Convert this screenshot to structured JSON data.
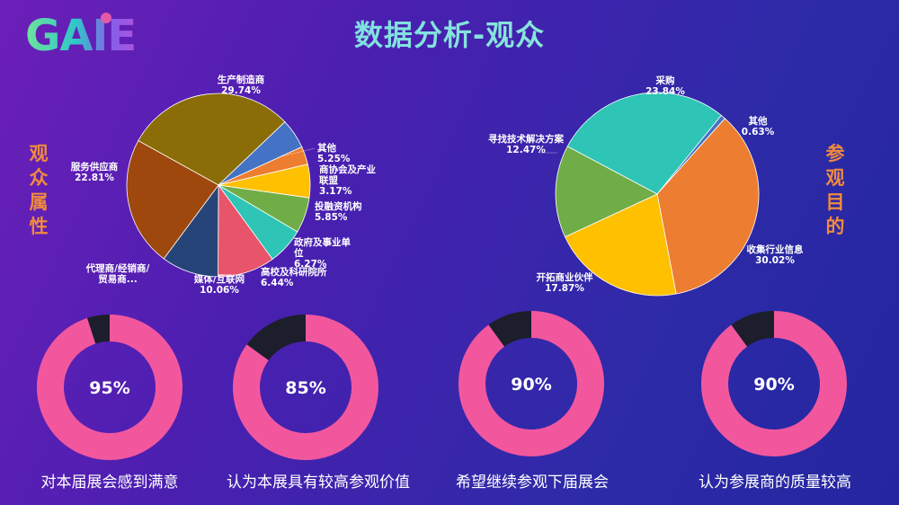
{
  "logo": {
    "text": "GAIE"
  },
  "title": "数据分析-观众",
  "left_side_label": "观众属性",
  "right_side_label": "参观目的",
  "colors": {
    "donut_fill": "#f2579e",
    "donut_rest": "#1c1e2b",
    "accent": "#f08a3e"
  },
  "chart_data": [
    {
      "type": "pie",
      "title": "",
      "slices": [
        {
          "label": "生产制造商",
          "value": 29.74,
          "pct_text": "29.74%",
          "color": "#8a6d06"
        },
        {
          "label": "其他",
          "value": 5.25,
          "pct_text": "5.25%",
          "color": "#4472c4"
        },
        {
          "label": "商协会及产业联盟",
          "value": 3.17,
          "pct_text": "3.17%",
          "color": "#ed7d31"
        },
        {
          "label": "投融资机构",
          "value": 5.85,
          "pct_text": "5.85%",
          "color": "#ffc000"
        },
        {
          "label": "政府及事业单位",
          "value": 6.27,
          "pct_text": "6.27%",
          "color": "#70ad47"
        },
        {
          "label": "高校及科研院所",
          "value": 6.44,
          "pct_text": "6.44%",
          "color": "#2ec4b6"
        },
        {
          "label": "媒体/互联网",
          "value": 10.06,
          "pct_text": "10.06%",
          "color": "#e8546a"
        },
        {
          "label": "代理商/经销商/贸易商...",
          "value": 10.06,
          "pct_text": "",
          "color": "#264478"
        },
        {
          "label": "服务供应商",
          "value": 22.81,
          "pct_text": "22.81%",
          "color": "#9e480e"
        }
      ]
    },
    {
      "type": "pie",
      "title": "",
      "slices": [
        {
          "label": "采购",
          "value": 23.84,
          "pct_text": "23.84%",
          "color": "#2ec4b6"
        },
        {
          "label": "其他",
          "value": 0.63,
          "pct_text": "0.63%",
          "color": "#4472c4"
        },
        {
          "label": "收集行业信息",
          "value": 30.02,
          "pct_text": "30.02%",
          "color": "#ed7d31"
        },
        {
          "label": "开拓商业伙伴",
          "value": 17.87,
          "pct_text": "17.87%",
          "color": "#ffc000"
        },
        {
          "label": "寻找技术解决方案",
          "value": 12.47,
          "pct_text": "12.47%",
          "color": "#70ad47"
        }
      ]
    },
    {
      "type": "pie",
      "subtype": "donut",
      "value": 95,
      "value_text": "95%",
      "caption": "对本届展会感到满意"
    },
    {
      "type": "pie",
      "subtype": "donut",
      "value": 85,
      "value_text": "85%",
      "caption": "认为本展具有较高参观价值"
    },
    {
      "type": "pie",
      "subtype": "donut",
      "value": 90,
      "value_text": "90%",
      "caption": "希望继续参观下届展会"
    },
    {
      "type": "pie",
      "subtype": "donut",
      "value": 90,
      "value_text": "90%",
      "caption": "认为参展商的质量较高"
    }
  ]
}
